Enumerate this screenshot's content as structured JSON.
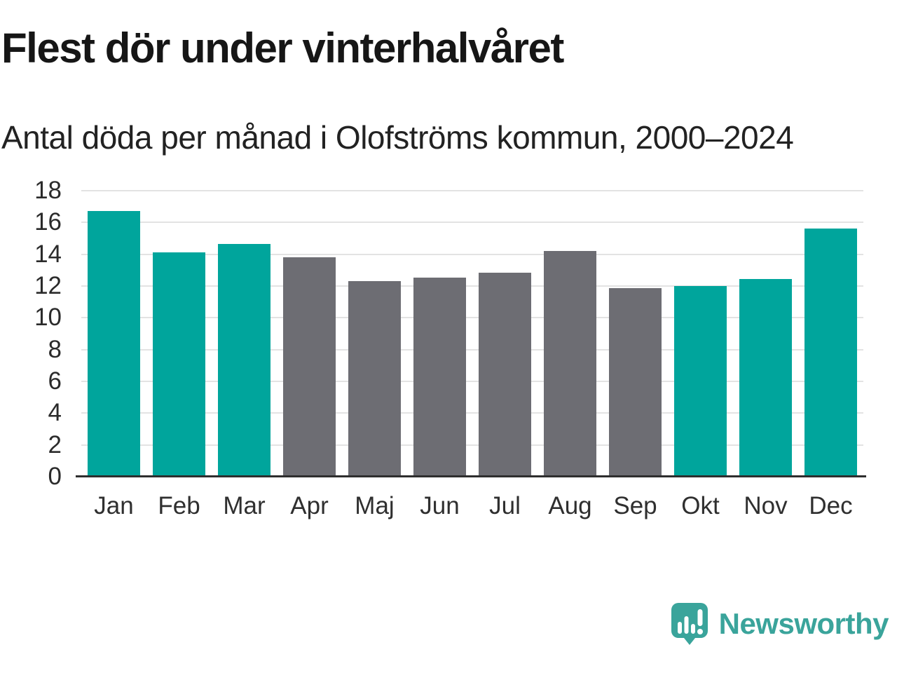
{
  "title": "Flest dör under vinterhalvåret",
  "subtitle": "Antal döda per månad i Olofströms kommun, 2000–2024",
  "colors": {
    "highlight": "#00a59c",
    "muted": "#6d6d73",
    "grid": "#e3e3e3",
    "axis_line": "#2e2e2e",
    "title_text": "#161616",
    "tick_text": "#2b2b2b",
    "brand": "#3aa49b"
  },
  "chart_data": {
    "type": "bar",
    "title": "Flest dör under vinterhalvåret",
    "subtitle": "Antal döda per månad i Olofströms kommun, 2000–2024",
    "categories": [
      "Jan",
      "Feb",
      "Mar",
      "Apr",
      "Maj",
      "Jun",
      "Jul",
      "Aug",
      "Sep",
      "Okt",
      "Nov",
      "Dec"
    ],
    "values": [
      16.7,
      14.1,
      14.65,
      13.8,
      12.3,
      12.55,
      12.85,
      14.2,
      11.85,
      12.0,
      12.45,
      15.6
    ],
    "bar_colors": [
      "#00a59c",
      "#00a59c",
      "#00a59c",
      "#6d6d73",
      "#6d6d73",
      "#6d6d73",
      "#6d6d73",
      "#6d6d73",
      "#6d6d73",
      "#00a59c",
      "#00a59c",
      "#00a59c"
    ],
    "highlight_months": [
      "Jan",
      "Feb",
      "Mar",
      "Okt",
      "Nov",
      "Dec"
    ],
    "xlabel": "",
    "ylabel": "",
    "ylim": [
      0,
      18
    ],
    "yticks": [
      0,
      2,
      4,
      6,
      8,
      10,
      12,
      14,
      16,
      18
    ],
    "grid": "horizontal",
    "legend": "none"
  },
  "footer": {
    "brand": "Newsworthy",
    "logo_icon": "newsworthy-speech-bubble-chart-icon"
  }
}
